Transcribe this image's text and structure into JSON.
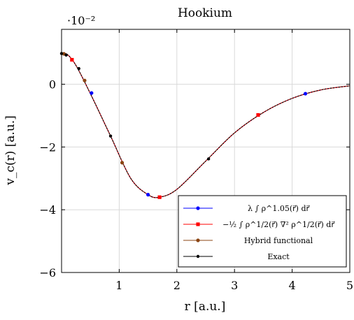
{
  "chart_data": {
    "type": "line",
    "title": "Hookium",
    "xlabel": "r [a.u.]",
    "ylabel": "v_c(r) [a.u.]",
    "y_scale_label": "·10⁻²",
    "xlim": [
      0,
      5
    ],
    "ylim": [
      -6,
      1.75
    ],
    "x_ticks": [
      1,
      2,
      3,
      4,
      5
    ],
    "y_ticks": [
      -6,
      -4,
      -2,
      0
    ],
    "grid": true,
    "legend_position": "bottom-right",
    "series": [
      {
        "name": "λ ∫ ρ^1.05(r⃗) dr⃗",
        "color": "#0000ff",
        "marker": "circle",
        "x": [
          0.0,
          0.1,
          0.25,
          0.5,
          0.85,
          1.2,
          1.5,
          1.7,
          2.0,
          2.5,
          3.0,
          3.5,
          4.0,
          4.5,
          5.0
        ],
        "y": [
          0.98,
          0.95,
          0.6,
          -0.3,
          -1.65,
          -3.0,
          -3.52,
          -3.6,
          -3.35,
          -2.45,
          -1.55,
          -0.9,
          -0.45,
          -0.18,
          -0.05
        ],
        "marker_x": [
          0.52,
          1.5,
          4.23
        ],
        "marker_y": [
          -0.28,
          -3.52,
          -0.3
        ]
      },
      {
        "name": "−½ ∫ ρ^1/2(r⃗) ∇² ρ^1/2(r⃗) dr⃗",
        "color": "#ff0000",
        "marker": "square",
        "x": [
          0.0,
          0.1,
          0.25,
          0.5,
          0.85,
          1.2,
          1.5,
          1.7,
          2.0,
          2.5,
          3.0,
          3.5,
          4.0,
          4.5,
          5.0
        ],
        "y": [
          0.98,
          0.95,
          0.6,
          -0.3,
          -1.65,
          -3.0,
          -3.52,
          -3.6,
          -3.35,
          -2.45,
          -1.55,
          -0.9,
          -0.45,
          -0.18,
          -0.05
        ],
        "marker_x": [
          0.18,
          1.7,
          3.41
        ],
        "marker_y": [
          0.78,
          -3.6,
          -0.98
        ]
      },
      {
        "name": "Hybrid functional",
        "color": "#8b4513",
        "marker": "circle",
        "x": [
          0.0,
          0.1,
          0.25,
          0.5,
          0.85,
          1.2,
          1.5,
          1.7,
          2.0,
          2.5,
          3.0,
          3.5,
          4.0,
          4.5,
          5.0
        ],
        "y": [
          0.98,
          0.95,
          0.6,
          -0.3,
          -1.65,
          -3.0,
          -3.52,
          -3.6,
          -3.35,
          -2.45,
          -1.55,
          -0.9,
          -0.45,
          -0.18,
          -0.05
        ],
        "marker_x": [
          0.04,
          0.4,
          1.05
        ],
        "marker_y": [
          0.97,
          0.12,
          -2.5
        ]
      },
      {
        "name": "Exact",
        "color": "#000000",
        "marker": "dot",
        "x": [
          0.0,
          0.1,
          0.25,
          0.5,
          0.85,
          1.2,
          1.5,
          1.7,
          2.0,
          2.5,
          3.0,
          3.5,
          4.0,
          4.5,
          5.0
        ],
        "y": [
          0.98,
          0.95,
          0.6,
          -0.3,
          -1.65,
          -3.0,
          -3.52,
          -3.6,
          -3.35,
          -2.45,
          -1.55,
          -0.9,
          -0.45,
          -0.18,
          -0.05
        ],
        "marker_x": [
          0.0,
          0.08,
          0.3,
          0.85,
          2.55
        ],
        "marker_y": [
          0.98,
          0.93,
          0.5,
          -1.65,
          -2.38
        ]
      }
    ]
  }
}
